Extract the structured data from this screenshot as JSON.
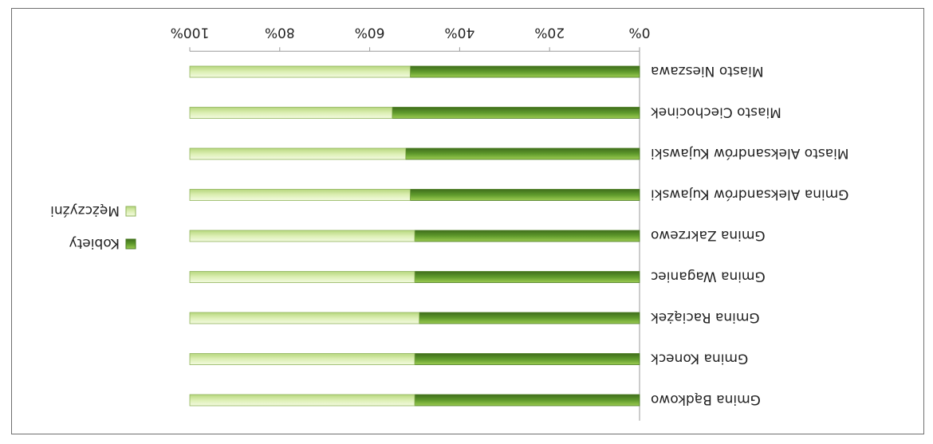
{
  "chart_data": {
    "type": "bar",
    "stacked_percent": true,
    "orientation": "horizontal",
    "image_rotated_180": true,
    "categories": [
      "Gmina Bądkowo",
      "Gmina Koneck",
      "Gmina Raciążek",
      "Gmina Waganiec",
      "Gmina Zakrzewo",
      "Gmina Aleksandrów Kujawski",
      "Miasto Aleksandrów Kujawski",
      "Miasto Ciechocinek",
      "Miasto Nieszawa"
    ],
    "series": [
      {
        "name": "Kobiety",
        "values": [
          50,
          50,
          49,
          50,
          50,
          51,
          52,
          55,
          51
        ],
        "color": "#6aa84f"
      },
      {
        "name": "Mężczyźni",
        "values": [
          50,
          50,
          51,
          50,
          50,
          49,
          48,
          45,
          49
        ],
        "color": "#d9edb0"
      }
    ],
    "xlim": [
      0,
      100
    ],
    "ticks": [
      "0%",
      "20%",
      "40%",
      "60%",
      "80%",
      "100%"
    ],
    "legend_position": "right",
    "grid": false
  }
}
